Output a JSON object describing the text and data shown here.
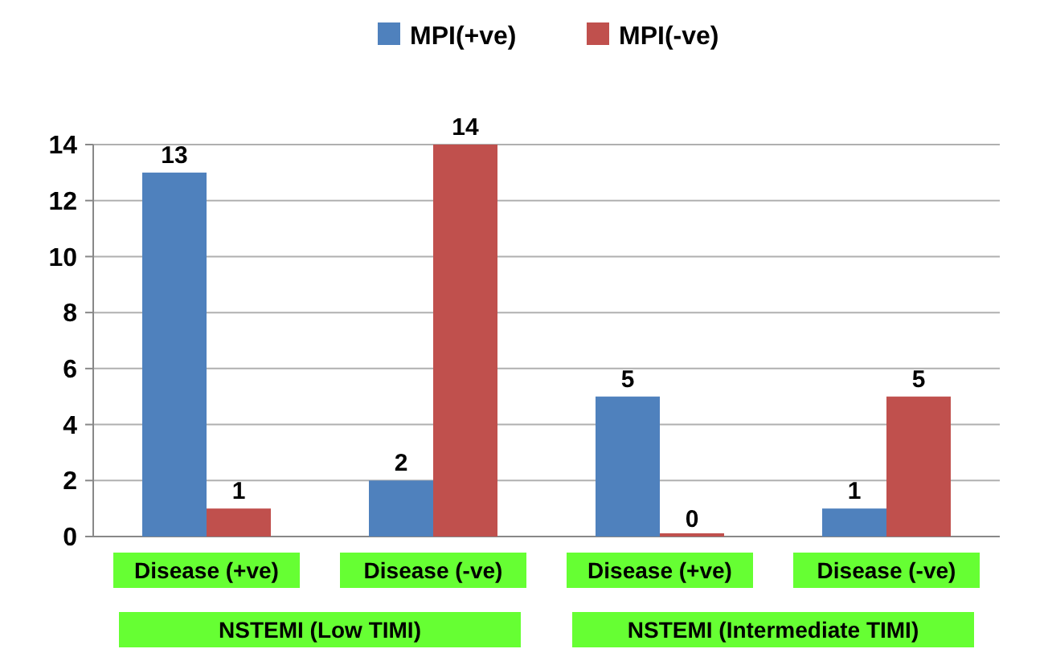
{
  "chart_data": {
    "type": "bar",
    "categories": [
      "Disease (+ve)",
      "Disease (-ve)",
      "Disease (+ve)",
      "Disease (-ve)"
    ],
    "series": [
      {
        "name": "MPI(+ve)",
        "color": "#4f81bd",
        "values": [
          13,
          2,
          5,
          1
        ]
      },
      {
        "name": "MPI(-ve)",
        "color": "#c0504d",
        "values": [
          1,
          14,
          0,
          5
        ]
      }
    ],
    "ylim": [
      0,
      14
    ],
    "yticks": [
      0,
      2,
      4,
      6,
      8,
      10,
      12,
      14
    ],
    "grid": "y",
    "legend": "top",
    "data_labels": true,
    "annotations": [
      "NSTEMI (Low TIMI)",
      "NSTEMI (Intermediate TIMI)"
    ]
  }
}
